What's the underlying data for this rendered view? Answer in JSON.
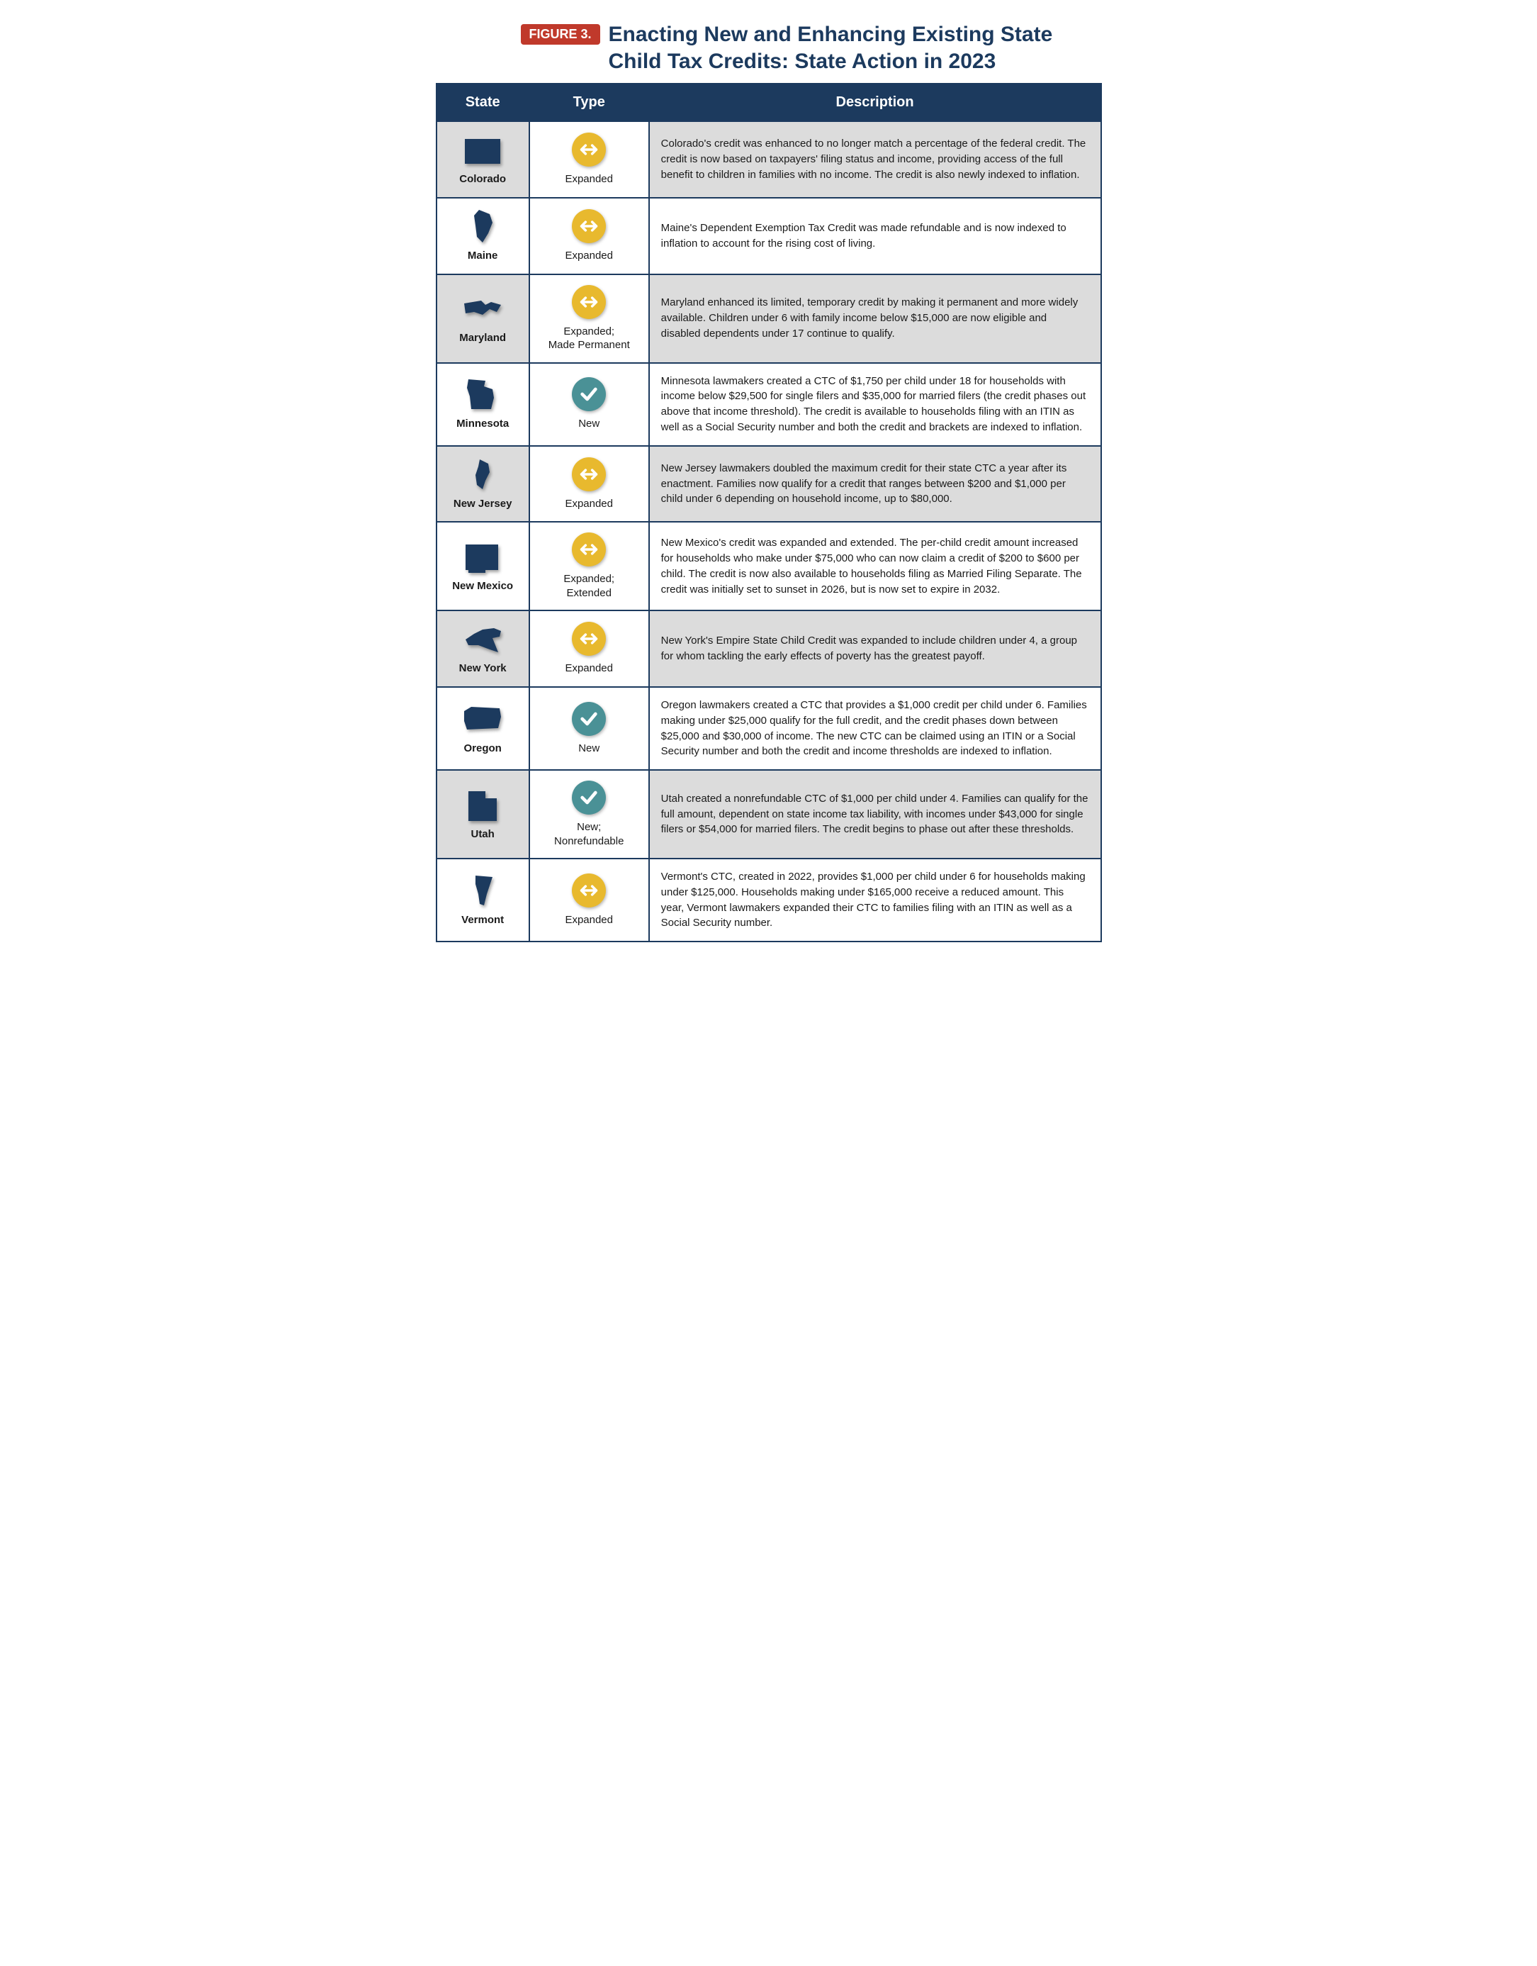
{
  "figure_badge": "FIGURE 3.",
  "figure_title": "Enacting New and Enhancing Existing State Child Tax Credits: State Action in 2023",
  "colors": {
    "header_bg": "#1c3a5e",
    "badge_bg": "#c0392b",
    "alt_row_bg": "#dcdcdc",
    "expanded_icon": "#e8b92e",
    "new_icon": "#4a9196",
    "state_fill": "#1c3a5e"
  },
  "columns": {
    "state": "State",
    "type": "Type",
    "description": "Description"
  },
  "type_legend": {
    "expanded": {
      "label_default": "Expanded",
      "color": "#e8b92e",
      "glyph": "arrows-h"
    },
    "new": {
      "label_default": "New",
      "color": "#4a9196",
      "glyph": "check"
    }
  },
  "rows": [
    {
      "state": "Colorado",
      "type_kind": "expanded",
      "type_label": "Expanded",
      "description": "Colorado's credit was enhanced to no longer match a percentage of the federal credit. The credit is now based on taxpayers' filing status and income, providing access of the full benefit to children in families with no income. The credit is also newly indexed to inflation."
    },
    {
      "state": "Maine",
      "type_kind": "expanded",
      "type_label": "Expanded",
      "description": "Maine's Dependent Exemption Tax Credit was made refundable and is now indexed to inflation to account for the rising cost of living."
    },
    {
      "state": "Maryland",
      "type_kind": "expanded",
      "type_label": "Expanded;\nMade Permanent",
      "description": "Maryland enhanced its limited, temporary credit by making it permanent and more widely available. Children under 6 with family income below $15,000 are now eligible and disabled dependents under 17 continue to qualify."
    },
    {
      "state": "Minnesota",
      "type_kind": "new",
      "type_label": "New",
      "description": "Minnesota lawmakers created a CTC of $1,750 per child under 18 for households with income below $29,500 for single filers and $35,000 for married filers (the credit phases out above that income threshold). The credit is available to households filing with an ITIN as well as a Social Security number and both the credit and brackets are indexed to inflation."
    },
    {
      "state": "New Jersey",
      "type_kind": "expanded",
      "type_label": "Expanded",
      "description": "New Jersey lawmakers doubled the maximum credit for their state CTC a year after its enactment. Families now qualify for a credit that ranges between $200 and $1,000 per child under 6 depending on household income, up to $80,000."
    },
    {
      "state": "New Mexico",
      "type_kind": "expanded",
      "type_label": "Expanded;\nExtended",
      "description": "New Mexico's credit was expanded and extended. The per-child credit amount increased for households who make under $75,000 who can now claim a credit of $200 to $600 per child. The credit is now also available to households filing as Married Filing Separate. The credit was initially set to sunset in 2026, but is now set to expire in 2032."
    },
    {
      "state": "New York",
      "type_kind": "expanded",
      "type_label": "Expanded",
      "description": "New York's Empire State Child Credit was expanded to include children under 4, a group for whom tackling the early effects of poverty has the greatest payoff."
    },
    {
      "state": "Oregon",
      "type_kind": "new",
      "type_label": "New",
      "description": "Oregon lawmakers created a CTC that provides a $1,000 credit per child under 6. Families making under $25,000 qualify for the full credit, and the credit phases down between $25,000 and $30,000 of income. The new CTC can be claimed using an ITIN or a Social Security number and both the credit and income thresholds are indexed to inflation."
    },
    {
      "state": "Utah",
      "type_kind": "new",
      "type_label": "New;\nNonrefundable",
      "description": "Utah created a nonrefundable CTC of $1,000 per child under 4. Families can qualify for the full amount, dependent on state income tax liability, with incomes under $43,000 for single filers or $54,000 for married filers. The credit begins to phase out after these thresholds."
    },
    {
      "state": "Vermont",
      "type_kind": "expanded",
      "type_label": "Expanded",
      "description": "Vermont's CTC, created in 2022, provides $1,000 per child under 6 for households making under $125,000. Households making under $165,000 receive a reduced amount. This year, Vermont lawmakers expanded their CTC to families filing with an ITIN as well as a Social Security number."
    }
  ]
}
